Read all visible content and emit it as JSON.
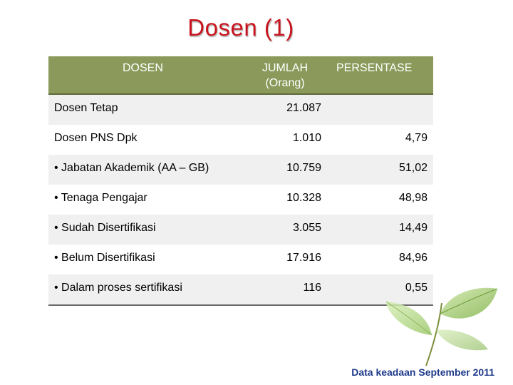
{
  "title": "Dosen (1)",
  "table": {
    "headers": {
      "col1": "DOSEN",
      "col2_line1": "JUMLAH",
      "col2_line2": "(Orang)",
      "col3": "PERSENTASE"
    },
    "rows": [
      {
        "label": "Dosen  Tetap",
        "count": "21.087",
        "percent": ""
      },
      {
        "label": "Dosen PNS Dpk",
        "count": "1.010",
        "percent": "4,79"
      },
      {
        "label": "• Jabatan Akademik (AA – GB)",
        "count": "10.759",
        "percent": "51,02"
      },
      {
        "label": "• Tenaga Pengajar",
        "count": "10.328",
        "percent": "48,98"
      },
      {
        "label": "• Sudah Disertifikasi",
        "count": "3.055",
        "percent": "14,49"
      },
      {
        "label": "• Belum Disertifikasi",
        "count": "17.916",
        "percent": "84,96"
      },
      {
        "label": "• Dalam proses sertifikasi",
        "count": "116",
        "percent": "0,55"
      }
    ]
  },
  "footnote": "Data keadaan September 2011",
  "colors": {
    "title": "#c8141e",
    "header_bg": "#8b9a5b",
    "row_shade": "#f0f0f0",
    "footnote": "#1f3a8a"
  },
  "decoration": "green-leaves"
}
